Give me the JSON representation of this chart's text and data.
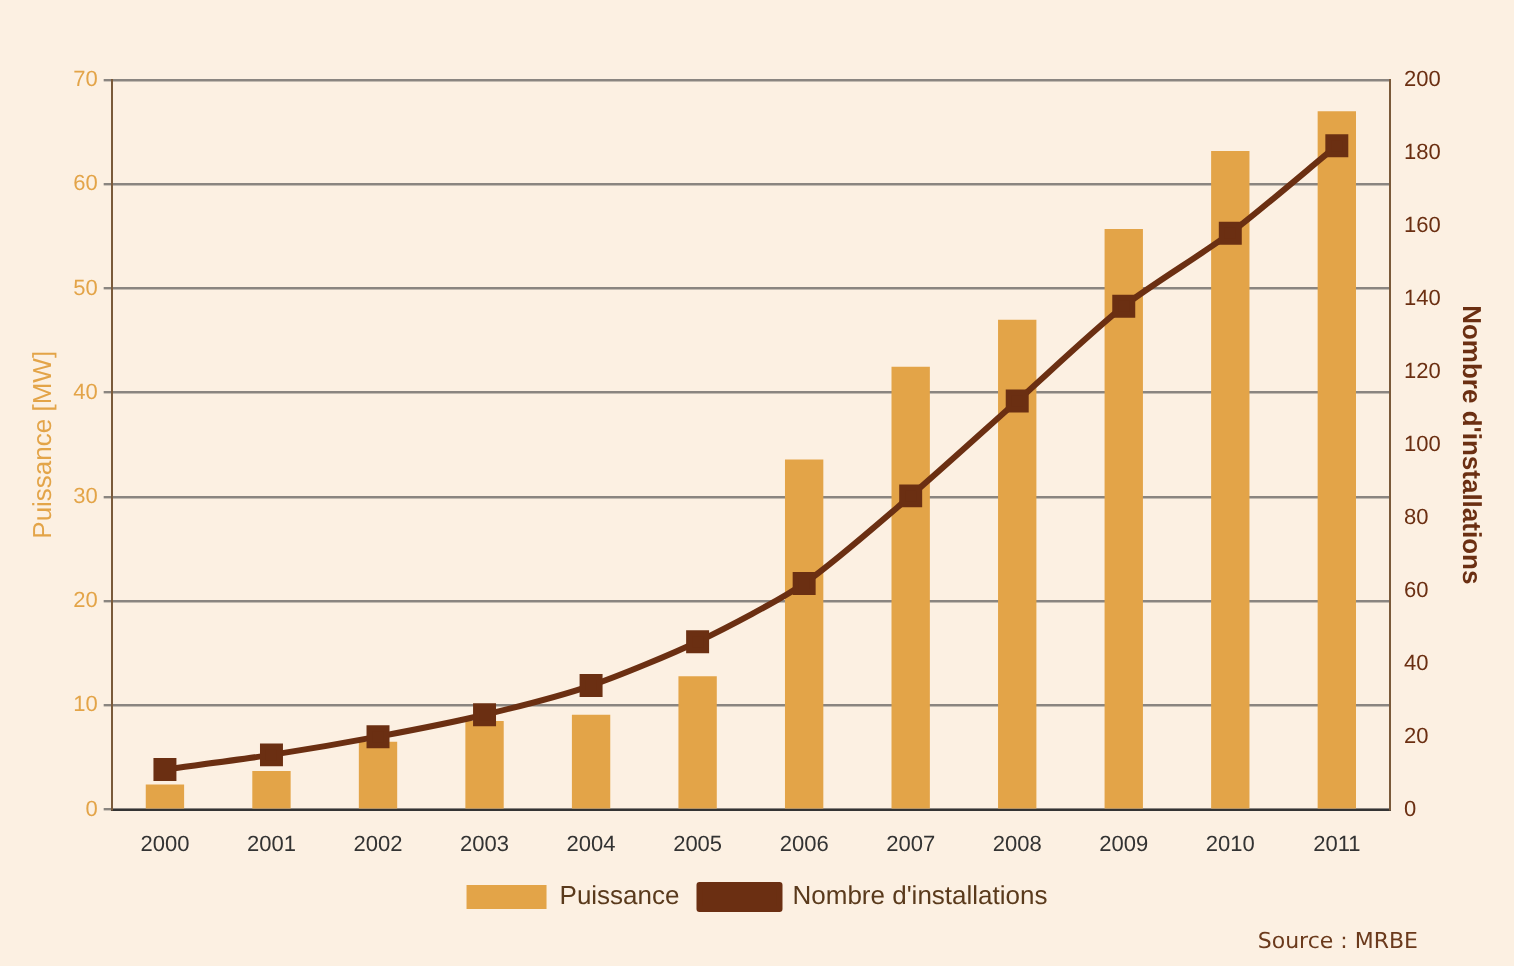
{
  "chart_data": {
    "type": "bar",
    "categories": [
      "2000",
      "2001",
      "2002",
      "2003",
      "2004",
      "2005",
      "2006",
      "2007",
      "2008",
      "2009",
      "2010",
      "2011"
    ],
    "ylabel": "Puissance [MW]",
    "y2label": "Nombre d'installations",
    "series": [
      {
        "name": "Puissance",
        "color": "#e3a448",
        "values": [
          2.4,
          3.7,
          6.5,
          8.5,
          9.1,
          12.8,
          33.6,
          42.5,
          47,
          55.7,
          63.2,
          67
        ]
      },
      {
        "name": "Nombre d'installations",
        "type": "line",
        "axis": "y2",
        "color": "#6b2f12",
        "marker": "square",
        "values": [
          11,
          15,
          20,
          26,
          34,
          46,
          62,
          86,
          112,
          138,
          158,
          182
        ]
      }
    ],
    "ylim": [
      0,
      70
    ],
    "yticks": [
      0,
      10,
      20,
      30,
      40,
      50,
      60,
      70
    ],
    "y2lim": [
      0,
      200
    ],
    "y2ticks": [
      0,
      20,
      40,
      60,
      80,
      100,
      120,
      140,
      160,
      180,
      200
    ],
    "grid": "y",
    "legend": "bottom",
    "annotations": [
      "Source : MRBE"
    ]
  }
}
